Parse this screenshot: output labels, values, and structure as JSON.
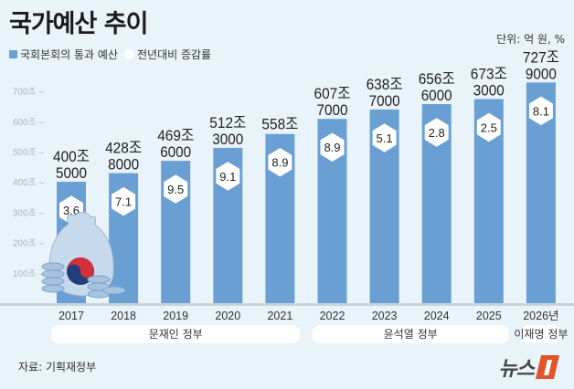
{
  "title": "국가예산 추이",
  "unit": "단위: 억 원, %",
  "legend": {
    "bar": "국회본회의 통과 예산",
    "hex": "전년대비 증감률"
  },
  "source": "자료: 기획재정부",
  "logo": {
    "text": "뉴스",
    "mark": "1"
  },
  "colors": {
    "bar": "#6a9fd4",
    "background": "#e9f3fa",
    "logo": "#e0552a"
  },
  "chart_data": {
    "type": "bar",
    "title": "국가예산 추이",
    "categories": [
      "2017",
      "2018",
      "2019",
      "2020",
      "2021",
      "2022",
      "2023",
      "2024",
      "2025",
      "2026년"
    ],
    "values": [
      400.5,
      428.8,
      469.6,
      512.3,
      558.0,
      607.7,
      638.7,
      656.6,
      673.3,
      727.9
    ],
    "value_labels": [
      [
        "400조",
        "5000"
      ],
      [
        "428조",
        "8000"
      ],
      [
        "469조",
        "6000"
      ],
      [
        "512조",
        "3000"
      ],
      [
        "558조",
        ""
      ],
      [
        "607조",
        "7000"
      ],
      [
        "638조",
        "7000"
      ],
      [
        "656조",
        "6000"
      ],
      [
        "673조",
        "3000"
      ],
      [
        "727조",
        "9000"
      ]
    ],
    "growth_rates": [
      "3.6",
      "7.1",
      "9.5",
      "9.1",
      "8.9",
      "8.9",
      "5.1",
      "2.8",
      "2.5",
      "8.1"
    ],
    "yticks": [
      "100조",
      "200조",
      "300조",
      "400조",
      "500조",
      "600조",
      "700조"
    ],
    "ylim": [
      0,
      700
    ],
    "grid": false,
    "periods": [
      {
        "label": "문재인 정부",
        "from": 0,
        "to": 4
      },
      {
        "label": "윤석열 정부",
        "from": 5,
        "to": 8
      },
      {
        "label": "이재명 정부",
        "from": 9,
        "to": 9
      }
    ]
  }
}
